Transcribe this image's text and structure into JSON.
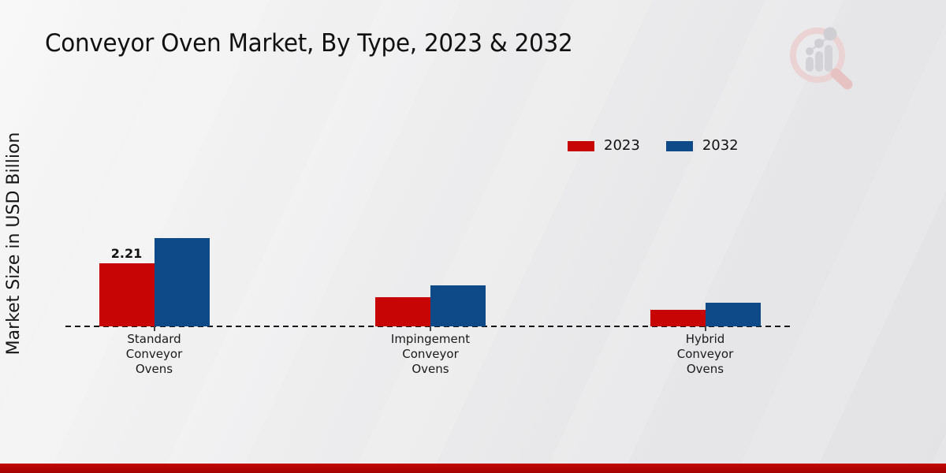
{
  "page": {
    "title": "Conveyor Oven Market, By Type, 2023 & 2032",
    "ylabel": "Market Size in USD Billion"
  },
  "legend": {
    "items": [
      {
        "label": "2023",
        "color": "#c60504"
      },
      {
        "label": "2032",
        "color": "#0e4a88"
      }
    ]
  },
  "chart_data": {
    "type": "bar",
    "title": "Conveyor Oven Market, By Type, 2023 & 2032",
    "ylabel": "Market Size in USD Billion",
    "xlabel": "",
    "categories": [
      "Standard Conveyor Ovens",
      "Impingement Conveyor Ovens",
      "Hybrid Conveyor Ovens"
    ],
    "series": [
      {
        "name": "2023",
        "color": "#c60504",
        "values": [
          2.21,
          1.02,
          0.58
        ]
      },
      {
        "name": "2032",
        "color": "#0e4a88",
        "values": [
          3.09,
          1.44,
          0.83
        ]
      }
    ],
    "annotations": [
      {
        "text": "2.21",
        "series_index": 0,
        "category_index": 0
      }
    ],
    "ylim": [
      0,
      3.5
    ],
    "grid": false,
    "y_axis_ticks_visible": false,
    "baseline_style": "dashed",
    "legend_position": "top-right"
  },
  "branding": {
    "logo_icon": "magnifier-bar-chart-logo",
    "footer_bar_color": "#b30505"
  }
}
